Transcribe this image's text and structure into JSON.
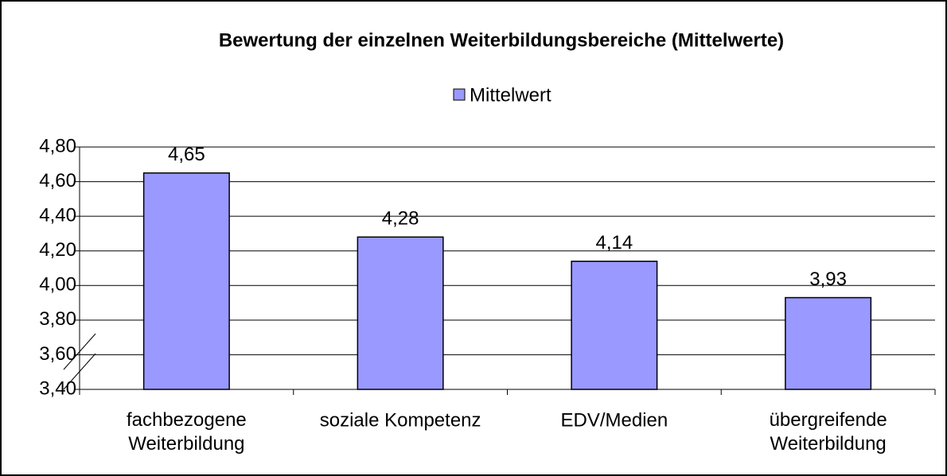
{
  "chart_data": {
    "type": "bar",
    "title": "Bewertung der einzelnen Weiterbildungsbereiche (Mittelwerte)",
    "categories": [
      "fachbezogene\nWeiterbildung",
      "soziale Kompetenz",
      "EDV/Medien",
      "übergreifende\nWeiterbildung"
    ],
    "series": [
      {
        "name": "Mittelwert",
        "color": "#9999ff",
        "values": [
          4.65,
          4.28,
          4.14,
          3.93
        ],
        "value_labels": [
          "4,65",
          "4,28",
          "4,14",
          "3,93"
        ]
      }
    ],
    "ylim": [
      3.4,
      4.8
    ],
    "yticks": [
      {
        "value": 3.4,
        "label": "3,40"
      },
      {
        "value": 3.6,
        "label": "3,60"
      },
      {
        "value": 3.8,
        "label": "3,80"
      },
      {
        "value": 4.0,
        "label": "4,00"
      },
      {
        "value": 4.2,
        "label": "4,20"
      },
      {
        "value": 4.4,
        "label": "4,40"
      },
      {
        "value": 4.6,
        "label": "4,60"
      },
      {
        "value": 4.8,
        "label": "4,80"
      }
    ],
    "grid": true,
    "legend": "top"
  }
}
